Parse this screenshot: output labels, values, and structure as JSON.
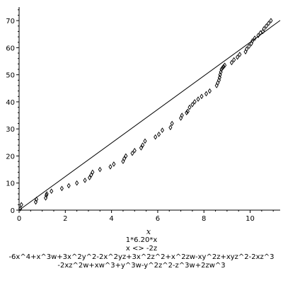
{
  "chart_data": {
    "type": "scatter",
    "xlabel": "x",
    "ylabel": "",
    "xlim": [
      0,
      11.3
    ],
    "ylim": [
      0,
      75
    ],
    "x_ticks": [
      "0",
      "2",
      "4",
      "6",
      "8",
      "10"
    ],
    "y_ticks": [
      "0",
      "10",
      "20",
      "30",
      "40",
      "50",
      "60",
      "70"
    ],
    "grid": false,
    "legend": "none",
    "colors": {
      "points": "#000000",
      "reference_line": "#000000"
    },
    "reference_line": {
      "slope": 6.2,
      "intercept": 0
    },
    "series": [
      {
        "x": [
          0.05,
          0.1,
          0.72,
          0.75,
          1.15,
          1.18,
          1.2,
          1.4,
          1.85,
          2.15,
          2.5,
          2.85,
          3.05,
          3.12,
          3.18,
          3.5,
          3.95,
          4.1,
          4.5,
          4.55,
          4.62,
          4.9,
          5.0,
          5.28,
          5.35,
          5.45,
          5.9,
          6.05,
          6.2,
          6.55,
          6.62,
          7.0,
          7.05,
          7.25,
          7.3,
          7.38,
          7.5,
          7.6,
          7.75,
          7.9,
          8.1,
          8.25,
          8.55,
          8.6,
          8.65,
          8.68,
          8.7,
          8.73,
          8.76,
          8.8,
          8.85,
          8.9,
          9.2,
          9.3,
          9.45,
          9.55,
          9.8,
          9.85,
          9.95,
          10.05,
          10.1,
          10.2,
          10.35,
          10.45,
          10.55,
          10.6,
          10.7,
          10.8,
          10.9
        ],
        "y": [
          0.5,
          2,
          3,
          4,
          4.5,
          5.5,
          6,
          7,
          8,
          9,
          10,
          11,
          12,
          13,
          14,
          15,
          16,
          17,
          18,
          19,
          20,
          21,
          22,
          23,
          24,
          25.5,
          27,
          28,
          29.5,
          30.5,
          32,
          34,
          35,
          36,
          36.5,
          38,
          39,
          40,
          41,
          42,
          43,
          44,
          46,
          47,
          48,
          49,
          50,
          51,
          52,
          52.5,
          53,
          53.5,
          54.5,
          55.5,
          56.5,
          57.5,
          58.5,
          59.5,
          60.5,
          61.5,
          62.5,
          63.5,
          64.5,
          65.5,
          66,
          67,
          68,
          69,
          70
        ]
      }
    ]
  },
  "caption": {
    "line1": "1*6.20*x",
    "line2": "x <> -2z",
    "line3": "-6x^4+x^3w+3x^2y^2-2x^2yz+3x^2z^2+x^2zw-xy^2z+xyz^2-2xz^3",
    "line4": "-2xz^2w+xw^3+y^3w-y^2z^2-z^3w+2zw^3"
  }
}
